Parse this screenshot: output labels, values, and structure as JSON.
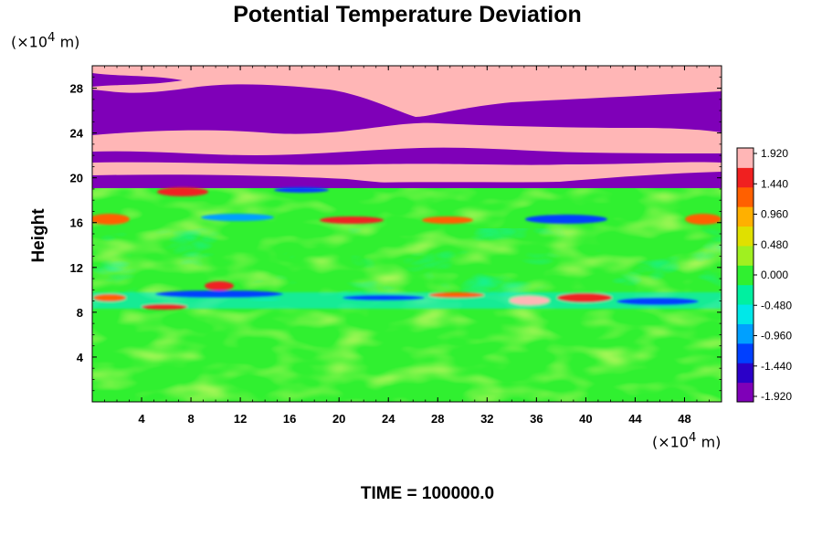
{
  "chart_data": {
    "type": "heatmap",
    "title": "Potential Temperature Deviation",
    "ylabel": "Height",
    "y_unit_prefix": "(×10",
    "x_unit_prefix": "(×10",
    "unit_exponent": "4",
    "unit_suffix": " m)",
    "x_ticks": [
      "4",
      "8",
      "12",
      "16",
      "20",
      "24",
      "28",
      "32",
      "36",
      "40",
      "44",
      "48"
    ],
    "y_ticks": [
      "4",
      "8",
      "12",
      "16",
      "20",
      "24",
      "28"
    ],
    "xlim": [
      0,
      51
    ],
    "ylim": [
      0,
      30
    ],
    "colorbar": {
      "min": -1.92,
      "max": 1.92,
      "labels": [
        "1.920",
        "1.440",
        "0.960",
        "0.480",
        "0.000",
        "-0.480",
        "-0.960",
        "-1.440",
        "-1.920"
      ],
      "colors": [
        "#7f00b8",
        "#2b00c8",
        "#0040ff",
        "#00a0ff",
        "#00e8e8",
        "#00f0a0",
        "#30f030",
        "#a0f020",
        "#e0e000",
        "#ffb000",
        "#ff6000",
        "#f02020",
        "#ffb6b6"
      ]
    },
    "regions": [
      {
        "y_from": 20,
        "y_to": 30,
        "value": 1.92,
        "note_color": "#ffb6b6"
      },
      {
        "y_from": 20,
        "y_to": 30,
        "value": -1.92,
        "note_color": "#7f00b8"
      },
      {
        "y_from": 0,
        "y_to": 20,
        "value": 0.0,
        "note_color": "#30f030"
      }
    ]
  },
  "time_label": "TIME = 100000.0"
}
